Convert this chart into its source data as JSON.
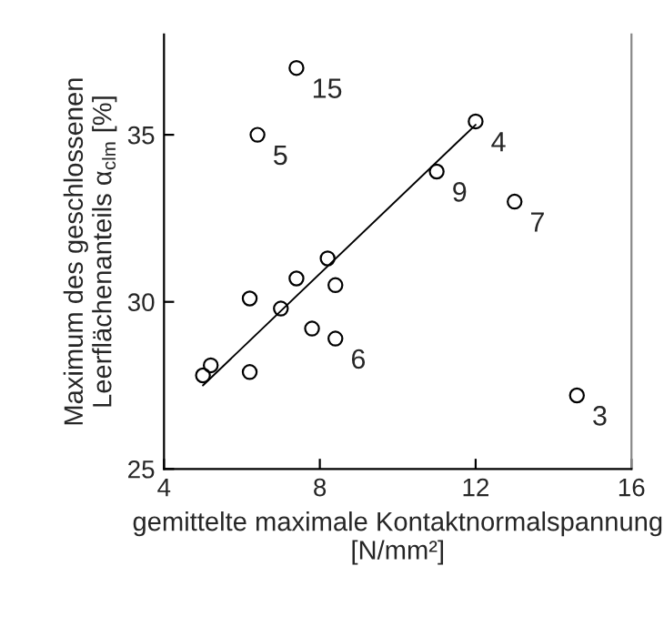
{
  "chart_data": {
    "type": "scatter",
    "xlabel": "gemittelte maximale Kontaktnormalspannung\n[N/mm²]",
    "ylabel": "Maximum des geschlossenen\nLeerflächenanteils α$_{clm}$ [%]",
    "xlim": [
      4,
      16
    ],
    "xticks": [
      4,
      8,
      12,
      16
    ],
    "ylim": [
      25,
      38
    ],
    "yticks": [
      25,
      30,
      35
    ],
    "grid": false,
    "legend": false,
    "series": [
      {
        "marker": "circle",
        "color": "#000000",
        "x": [
          7.4,
          6.4,
          12.0,
          11.0,
          13.0,
          8.2,
          7.4,
          8.4,
          6.2,
          7.0,
          7.8,
          8.4,
          5.2,
          5.0,
          6.2,
          14.6
        ],
        "values": [
          37.0,
          35.0,
          35.4,
          33.9,
          33.0,
          31.3,
          30.7,
          30.5,
          30.1,
          29.8,
          29.2,
          28.9,
          28.1,
          27.8,
          27.9,
          27.2
        ]
      },
      {
        "type": "line",
        "marker": "none",
        "color": "#000000",
        "x": [
          5.0,
          12.0
        ],
        "values": [
          27.5,
          35.3
        ]
      }
    ],
    "annotations": [
      {
        "text": "15",
        "x": 7.4,
        "y": 37.0
      },
      {
        "text": "5",
        "x": 6.4,
        "y": 35.0
      },
      {
        "text": "4",
        "x": 12.0,
        "y": 35.4
      },
      {
        "text": "9",
        "x": 11.0,
        "y": 33.9
      },
      {
        "text": "7",
        "x": 13.0,
        "y": 33.0
      },
      {
        "text": "6",
        "x": 8.4,
        "y": 28.9
      },
      {
        "text": "3",
        "x": 14.6,
        "y": 27.2
      }
    ]
  }
}
